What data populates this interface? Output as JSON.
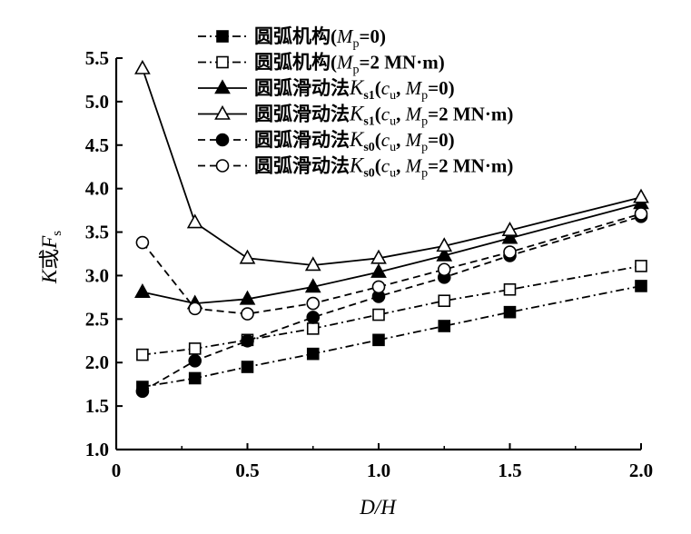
{
  "chart_data": {
    "type": "line",
    "xlabel": "D/H",
    "ylabel": "K或Fs",
    "xlim": [
      0,
      2.0
    ],
    "ylim": [
      1.0,
      5.5
    ],
    "x_ticks": [
      "0",
      "0.5",
      "1.0",
      "1.5",
      "2.0"
    ],
    "y_ticks": [
      "1.0",
      "1.5",
      "2.0",
      "2.5",
      "3.0",
      "3.5",
      "4.0",
      "4.5",
      "5.0",
      "5.5"
    ],
    "legend_position": "top-right",
    "x": [
      0.1,
      0.3,
      0.5,
      0.75,
      1.0,
      1.25,
      1.5,
      2.0
    ],
    "series": [
      {
        "name": "圆弧机构(Mp=0)",
        "marker": "square-filled",
        "line": "dashdot",
        "values": [
          1.72,
          1.82,
          1.95,
          2.1,
          2.26,
          2.42,
          2.58,
          2.88
        ]
      },
      {
        "name": "圆弧机构(Mp=2 MN·m)",
        "marker": "square-open",
        "line": "dashdot",
        "values": [
          2.09,
          2.16,
          2.26,
          2.39,
          2.55,
          2.71,
          2.84,
          3.11
        ]
      },
      {
        "name": "圆弧滑动法Ks1(cu, Mp=0)",
        "marker": "triangle-filled",
        "line": "solid",
        "values": [
          2.81,
          2.68,
          2.73,
          2.87,
          3.04,
          3.23,
          3.43,
          3.83
        ]
      },
      {
        "name": "圆弧滑动法Ks1(cu, Mp=2 MN·m)",
        "marker": "triangle-open",
        "line": "solid",
        "values": [
          5.38,
          3.61,
          3.2,
          3.12,
          3.2,
          3.34,
          3.52,
          3.9
        ]
      },
      {
        "name": "圆弧滑动法Ks0(cu, Mp=0)",
        "marker": "circle-filled",
        "line": "dashed",
        "values": [
          1.67,
          2.02,
          2.25,
          2.52,
          2.76,
          2.98,
          3.23,
          3.68
        ]
      },
      {
        "name": "圆弧滑动法Ks0(cu, Mp=2 MN·m)",
        "marker": "circle-open",
        "line": "dashed",
        "values": [
          3.38,
          2.62,
          2.56,
          2.68,
          2.87,
          3.07,
          3.27,
          3.71
        ]
      }
    ]
  },
  "legend": [
    {
      "main": "圆弧机构(",
      "sym": "M",
      "sub": "p",
      "rest": "=0)"
    },
    {
      "main": "圆弧机构(",
      "sym": "M",
      "sub": "p",
      "rest": "=2 MN·m)"
    },
    {
      "main": "圆弧滑动法",
      "sym": "K",
      "sub": "s1",
      "rest2a": "(",
      "c": "c",
      "csub": "u",
      "mid": ", ",
      "sym2": "M",
      "sub2": "p",
      "rest": "=0)"
    },
    {
      "main": "圆弧滑动法",
      "sym": "K",
      "sub": "s1",
      "rest2a": "(",
      "c": "c",
      "csub": "u",
      "mid": ", ",
      "sym2": "M",
      "sub2": "p",
      "rest": "=2 MN·m)"
    },
    {
      "main": "圆弧滑动法",
      "sym": "K",
      "sub": "s0",
      "rest2a": "(",
      "c": "c",
      "csub": "u",
      "mid": ", ",
      "sym2": "M",
      "sub2": "p",
      "rest": "=0)"
    },
    {
      "main": "圆弧滑动法",
      "sym": "K",
      "sub": "s0",
      "rest2a": "(",
      "c": "c",
      "csub": "u",
      "mid": ", ",
      "sym2": "M",
      "sub2": "p",
      "rest": "=2 MN·m)"
    }
  ],
  "axis_labels": {
    "x_main": "D/H",
    "y_K": "K",
    "y_or": "或",
    "y_F": "F",
    "y_sub": "s"
  }
}
